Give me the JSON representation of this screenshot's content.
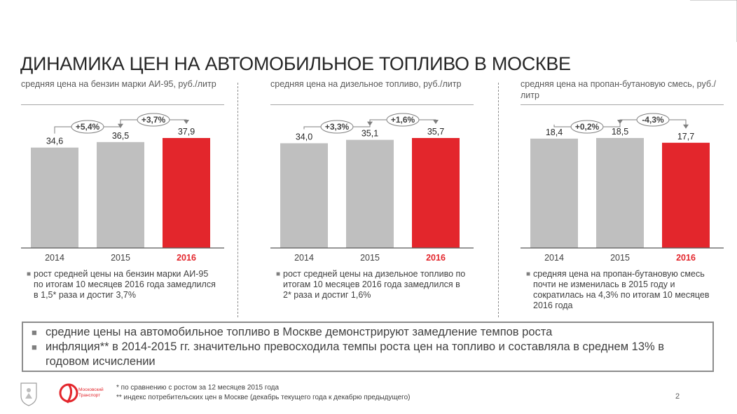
{
  "page": {
    "title": "ДИНАМИКА ЦЕН НА АВТОМОБИЛЬНОЕ ТОПЛИВО В МОСКВЕ",
    "page_number": "2"
  },
  "colors": {
    "bar_grey": "#bfbfbf",
    "bar_red": "#e3262c",
    "text_red": "#e3262c",
    "border": "#8c8c8c"
  },
  "panels": [
    {
      "header": "средняя цена на бензин марки АИ-95, руб./литр",
      "note": "рост средней цены на бензин марки АИ-95 по итогам 10 месяцев 2016 года замедлился в 1,5* раза и достиг 3,7%"
    },
    {
      "header": "средняя цена на дизельное топливо, руб./литр",
      "note": "рост средней цены на дизельное топливо по итогам 10 месяцев 2016 года замедлился в 2* раза и достиг 1,6%"
    },
    {
      "header": "средняя цена на пропан-бутановую смесь, руб./литр",
      "note": "средняя цена на пропан-бутановую смесь почти не изменилась в 2015 году и сократилась на 4,3% по итогам 10 месяцев 2016 года"
    }
  ],
  "chart_data": [
    {
      "type": "bar",
      "title": "средняя цена на бензин марки АИ-95, руб./литр",
      "categories": [
        "2014",
        "2015",
        "2016"
      ],
      "values": [
        34.6,
        36.5,
        37.9
      ],
      "value_labels": [
        "34,6",
        "36,5",
        "37,9"
      ],
      "highlight_index": 2,
      "changes": [
        "+5,4%",
        "+3,7%"
      ]
    },
    {
      "type": "bar",
      "title": "средняя цена на дизельное топливо, руб./литр",
      "categories": [
        "2014",
        "2015",
        "2016"
      ],
      "values": [
        34.0,
        35.1,
        35.7
      ],
      "value_labels": [
        "34,0",
        "35,1",
        "35,7"
      ],
      "highlight_index": 2,
      "changes": [
        "+3,3%",
        "+1,6%"
      ]
    },
    {
      "type": "bar",
      "title": "средняя цена на пропан-бутановую смесь, руб./литр",
      "categories": [
        "2014",
        "2015",
        "2016"
      ],
      "values": [
        18.4,
        18.5,
        17.7
      ],
      "value_labels": [
        "18,4",
        "18,5",
        "17,7"
      ],
      "highlight_index": 2,
      "changes": [
        "+0,2%",
        "-4,3%"
      ]
    }
  ],
  "summary": [
    "средние цены на автомобильное топливо в Москве демонстрируют замедление темпов роста",
    "инфляция** в 2014-2015 гг. значительно превосходила темпы роста цен на топливо и составляла в среднем 13% в годовом исчислении"
  ],
  "footer": {
    "logo_text": "Московский Транспорт",
    "footnote_1": "* по сравнению с ростом за 12 месяцев 2015 года",
    "footnote_2": "** индекс потребительских цен в Москве (декабрь текущего года к декабрю предыдущего)"
  }
}
